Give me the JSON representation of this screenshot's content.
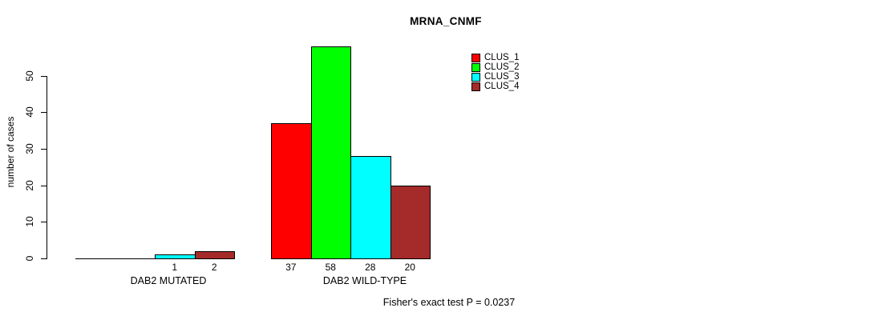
{
  "chart_data": {
    "type": "bar",
    "title": "MRNA_CNMF",
    "ylabel": "number of cases",
    "xlabel": "",
    "ylim": [
      0,
      58
    ],
    "yticks": [
      0,
      10,
      20,
      30,
      40,
      50
    ],
    "grid": false,
    "legend_position": "top-right",
    "categories": [
      "DAB2 MUTATED",
      "DAB2 WILD-TYPE"
    ],
    "series": [
      {
        "name": "CLUS_1",
        "color": "#ff0000",
        "values": [
          0,
          37
        ]
      },
      {
        "name": "CLUS_2",
        "color": "#00ff00",
        "values": [
          0,
          58
        ]
      },
      {
        "name": "CLUS_3",
        "color": "#00ffff",
        "values": [
          1,
          28
        ]
      },
      {
        "name": "CLUS_4",
        "color": "#a52a2a",
        "values": [
          2,
          20
        ]
      }
    ],
    "bar_value_labels": [
      [
        "",
        "",
        "1",
        "2"
      ],
      [
        "37",
        "58",
        "28",
        "20"
      ]
    ],
    "annotation": "Fisher's exact test P = 0.0237",
    "axis_color": "#000000",
    "bar_border_color": "#000000"
  }
}
